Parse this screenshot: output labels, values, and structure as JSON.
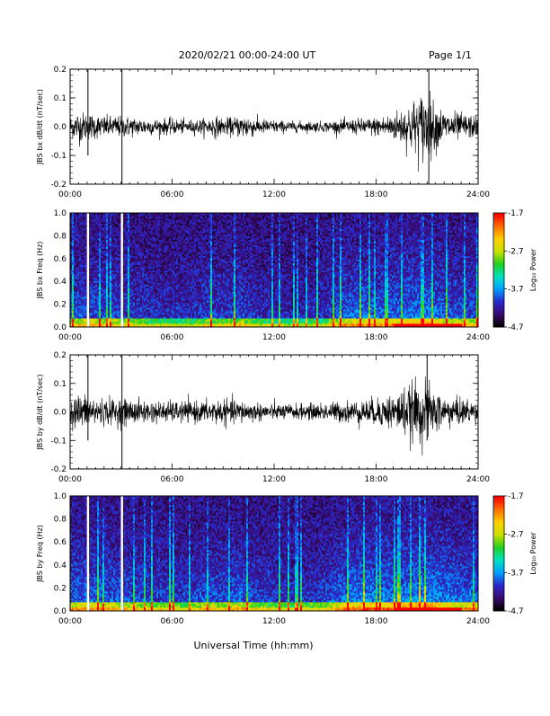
{
  "header": {
    "date_range": "2020/02/21  00:00-24:00 UT",
    "page": "Page 1/1"
  },
  "footer": {
    "xlabel": "Universal Time (hh:mm)"
  },
  "colors": {
    "trace": "#000000",
    "background": "#ffffff",
    "colorbar_stops": [
      "#000000",
      "#3a0a6e",
      "#2a2acc",
      "#00a0ff",
      "#00e0c0",
      "#20d020",
      "#c8e000",
      "#ffd000",
      "#ff7000",
      "#ff0000"
    ]
  },
  "chart_data": [
    {
      "type": "line",
      "ylabel": "JBS bx dB/dt (nT/sec)",
      "ylim": [
        -0.2,
        0.2
      ],
      "yticks": [
        -0.2,
        -0.1,
        0.0,
        0.1,
        0.2
      ],
      "ytick_labels": [
        "-0.2",
        "-0.1",
        "0.0",
        "0.1",
        "0.2"
      ],
      "xticks": [
        "00:00",
        "06:00",
        "12:00",
        "18:00",
        "24:00"
      ],
      "x_hours": [
        0,
        0.5,
        1.0,
        1.2,
        2.0,
        3.0,
        3.1,
        4.0,
        5.0,
        6.0,
        7.0,
        8.0,
        8.5,
        9.0,
        10.0,
        10.3,
        11.0,
        12.0,
        13.0,
        14.0,
        15.0,
        16.0,
        17.0,
        18.0,
        19.0,
        20.0,
        20.5,
        21.0,
        21.3,
        22.0,
        23.0,
        24.0
      ],
      "amplitude": [
        0.04,
        0.06,
        0.05,
        0.05,
        0.04,
        0.04,
        0.04,
        0.035,
        0.03,
        0.03,
        0.025,
        0.03,
        0.04,
        0.03,
        0.04,
        0.05,
        0.03,
        0.025,
        0.02,
        0.02,
        0.02,
        0.025,
        0.03,
        0.035,
        0.05,
        0.09,
        0.12,
        0.14,
        0.1,
        0.06,
        0.05,
        0.04
      ],
      "spikes": [
        {
          "x": 1.05,
          "ymin": -0.1,
          "ymax": 0.22
        },
        {
          "x": 3.05,
          "ymin": -0.2,
          "ymax": 0.22
        },
        {
          "x": 21.1,
          "ymin": -0.2,
          "ymax": 0.22
        }
      ]
    },
    {
      "type": "heatmap",
      "ylabel": "JBS bx Freq (Hz)",
      "ylim": [
        0.0,
        1.0
      ],
      "yticks": [
        0.0,
        0.2,
        0.4,
        0.6,
        0.8,
        1.0
      ],
      "ytick_labels": [
        "0.0",
        "0.2",
        "0.4",
        "0.6",
        "0.8",
        "1.0"
      ],
      "xticks": [
        "00:00",
        "06:00",
        "12:00",
        "18:00",
        "24:00"
      ],
      "colorbar_label": "Log₁₀ Power",
      "colorbar_ticks": [
        -4.7,
        -3.7,
        -2.7,
        -1.7
      ],
      "colorbar_tick_labels": [
        "-4.7",
        "-3.7",
        "-2.7",
        "-1.7"
      ],
      "data_gaps_hours": [
        1.05,
        3.05
      ],
      "activity_x_hours": [
        0,
        1,
        2,
        3,
        4,
        5,
        6,
        7,
        8,
        9,
        10,
        11,
        12,
        13,
        14,
        15,
        16,
        17,
        18,
        19,
        20,
        21,
        22,
        23,
        24
      ],
      "activity": [
        0.45,
        0.5,
        0.45,
        0.4,
        0.35,
        0.3,
        0.3,
        0.25,
        0.4,
        0.35,
        0.45,
        0.3,
        0.25,
        0.2,
        0.25,
        0.3,
        0.55,
        0.6,
        0.55,
        0.6,
        0.65,
        0.7,
        0.55,
        0.5,
        0.45
      ]
    },
    {
      "type": "line",
      "ylabel": "JBS by dB/dt (nT/sec)",
      "ylim": [
        -0.2,
        0.2
      ],
      "yticks": [
        -0.2,
        -0.1,
        0.0,
        0.1,
        0.2
      ],
      "ytick_labels": [
        "-0.2",
        "-0.1",
        "0.0",
        "0.1",
        "0.2"
      ],
      "xticks": [
        "00:00",
        "06:00",
        "12:00",
        "18:00",
        "24:00"
      ],
      "x_hours": [
        0,
        0.5,
        1.0,
        1.2,
        2.0,
        3.0,
        3.1,
        4.0,
        5.0,
        6.0,
        7.0,
        8.0,
        8.5,
        9.0,
        10.0,
        10.3,
        11.0,
        12.0,
        13.0,
        14.0,
        15.0,
        16.0,
        17.0,
        18.0,
        19.0,
        20.0,
        20.5,
        21.0,
        21.3,
        22.0,
        23.0,
        24.0
      ],
      "amplitude": [
        0.05,
        0.07,
        0.06,
        0.06,
        0.05,
        0.05,
        0.05,
        0.045,
        0.04,
        0.04,
        0.04,
        0.04,
        0.05,
        0.045,
        0.045,
        0.04,
        0.035,
        0.03,
        0.03,
        0.03,
        0.035,
        0.04,
        0.045,
        0.05,
        0.07,
        0.1,
        0.12,
        0.11,
        0.09,
        0.06,
        0.05,
        0.045
      ],
      "spikes": [
        {
          "x": 1.05,
          "ymin": -0.1,
          "ymax": 0.22
        },
        {
          "x": 3.05,
          "ymin": -0.2,
          "ymax": 0.22
        },
        {
          "x": 21.0,
          "ymin": -0.1,
          "ymax": 0.22
        }
      ]
    },
    {
      "type": "heatmap",
      "ylabel": "JBS by Freq (Hz)",
      "ylim": [
        0.0,
        1.0
      ],
      "yticks": [
        0.0,
        0.2,
        0.4,
        0.6,
        0.8,
        1.0
      ],
      "ytick_labels": [
        "0.0",
        "0.2",
        "0.4",
        "0.6",
        "0.8",
        "1.0"
      ],
      "xticks": [
        "00:00",
        "06:00",
        "12:00",
        "18:00",
        "24:00"
      ],
      "colorbar_label": "Log₁₀ Power",
      "colorbar_ticks": [
        -4.7,
        -3.7,
        -2.7,
        -1.7
      ],
      "colorbar_tick_labels": [
        "-4.7",
        "-3.7",
        "-2.7",
        "-1.7"
      ],
      "data_gaps_hours": [
        1.05,
        3.05
      ],
      "activity_x_hours": [
        0,
        1,
        2,
        3,
        4,
        5,
        6,
        7,
        8,
        9,
        10,
        11,
        12,
        13,
        14,
        15,
        16,
        17,
        18,
        19,
        20,
        21,
        22,
        23,
        24
      ],
      "activity": [
        0.55,
        0.6,
        0.55,
        0.5,
        0.45,
        0.4,
        0.4,
        0.35,
        0.5,
        0.45,
        0.55,
        0.4,
        0.35,
        0.3,
        0.35,
        0.4,
        0.65,
        0.7,
        0.7,
        0.7,
        0.75,
        0.8,
        0.65,
        0.6,
        0.55
      ]
    }
  ]
}
